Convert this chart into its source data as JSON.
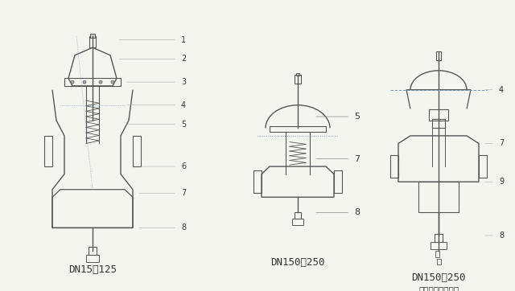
{
  "bg_color": "#f5f5f0",
  "title": "",
  "labels_left": [
    "1",
    "2",
    "3",
    "4",
    "5",
    "6",
    "7",
    "8"
  ],
  "labels_mid": [
    "5",
    "7",
    "8"
  ],
  "labels_right": [
    "4",
    "7",
    "9",
    "8"
  ],
  "caption_left": "DN15～125",
  "caption_mid": "DN150～250",
  "caption_right": "DN150～250",
  "caption_right2": "（半分词体结构）",
  "line_color": "#555555",
  "dotted_color": "#7799bb",
  "text_color": "#333333",
  "font_size": 8,
  "caption_font_size": 9
}
